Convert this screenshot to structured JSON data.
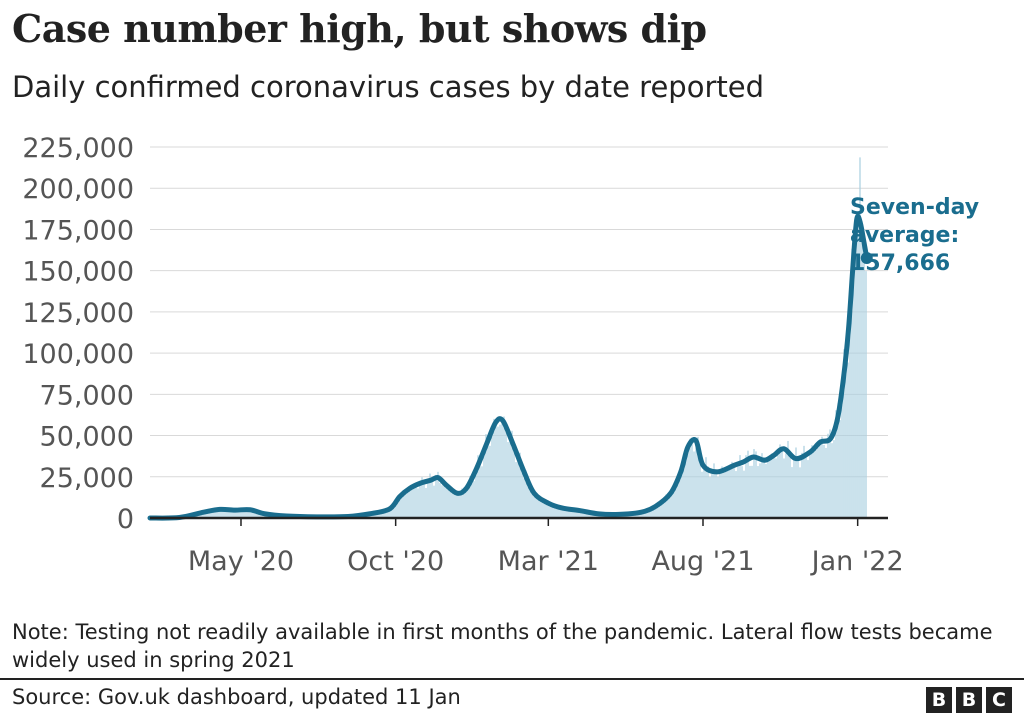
{
  "header": {
    "title": "Case number high, but shows dip",
    "subtitle": "Daily confirmed coronavirus cases by date reported"
  },
  "footer": {
    "note": "Note: Testing not readily available in first months of the pandemic. Lateral flow tests became widely used in spring 2021",
    "source": "Source: Gov.uk dashboard, updated 11 Jan",
    "logo": [
      "B",
      "B",
      "C"
    ]
  },
  "colors": {
    "line": "#1a6d8e",
    "bars": "#a8cfe0",
    "grid": "#d9d9d9",
    "axis": "#222222",
    "tick_text": "#555555"
  },
  "chart_data": {
    "type": "area",
    "title": "Case number high, but shows dip",
    "subtitle": "Daily confirmed coronavirus cases by date reported",
    "xlabel": "",
    "ylabel": "",
    "ylim": [
      0,
      225000
    ],
    "y_ticks": [
      0,
      25000,
      50000,
      75000,
      100000,
      125000,
      150000,
      175000,
      200000,
      225000
    ],
    "y_tick_labels": [
      "0",
      "25,000",
      "50,000",
      "75,000",
      "100,000",
      "125,000",
      "150,000",
      "175,000",
      "200,000",
      "225,000"
    ],
    "xlim": [
      "2020-02-01",
      "2022-01-31"
    ],
    "x_ticks": [
      "2020-05-01",
      "2020-10-01",
      "2021-03-01",
      "2021-08-01",
      "2022-01-01"
    ],
    "x_tick_labels": [
      "May '20",
      "Oct '20",
      "Mar '21",
      "Aug '21",
      "Jan '22"
    ],
    "grid": true,
    "series": [
      {
        "name": "Seven-day average",
        "type": "line",
        "x": [
          "2020-02-01",
          "2020-03-01",
          "2020-03-25",
          "2020-04-10",
          "2020-04-25",
          "2020-05-10",
          "2020-05-25",
          "2020-06-15",
          "2020-07-15",
          "2020-08-15",
          "2020-09-05",
          "2020-09-25",
          "2020-10-05",
          "2020-10-15",
          "2020-10-25",
          "2020-11-05",
          "2020-11-12",
          "2020-11-20",
          "2020-12-01",
          "2020-12-10",
          "2020-12-20",
          "2020-12-30",
          "2021-01-08",
          "2021-01-15",
          "2021-01-25",
          "2021-02-05",
          "2021-02-15",
          "2021-03-01",
          "2021-03-15",
          "2021-04-01",
          "2021-04-20",
          "2021-05-10",
          "2021-06-01",
          "2021-06-15",
          "2021-06-30",
          "2021-07-10",
          "2021-07-17",
          "2021-07-25",
          "2021-08-01",
          "2021-08-15",
          "2021-09-01",
          "2021-09-10",
          "2021-09-20",
          "2021-10-01",
          "2021-10-10",
          "2021-10-20",
          "2021-11-01",
          "2021-11-15",
          "2021-11-25",
          "2021-12-05",
          "2021-12-12",
          "2021-12-18",
          "2021-12-23",
          "2021-12-27",
          "2021-12-30",
          "2022-01-01",
          "2022-01-04",
          "2022-01-07",
          "2022-01-10"
        ],
        "y": [
          0,
          300,
          3500,
          5200,
          4800,
          5000,
          2500,
          1200,
          700,
          900,
          2500,
          5500,
          13000,
          18000,
          21000,
          23000,
          24500,
          20000,
          15000,
          18000,
          30000,
          45000,
          58000,
          59000,
          45000,
          28000,
          15000,
          9000,
          6000,
          4500,
          2500,
          2200,
          3500,
          7000,
          15000,
          28000,
          43000,
          47000,
          32000,
          28000,
          32000,
          34000,
          37000,
          35000,
          38000,
          42000,
          36000,
          40000,
          46000,
          48000,
          60000,
          85000,
          115000,
          150000,
          175000,
          183000,
          178000,
          168000,
          157666
        ]
      },
      {
        "name": "Daily cases",
        "type": "bar",
        "note": "daily reported cases shown as thin bars around the seven-day average",
        "peak_value": 218724,
        "peak_date": "2022-01-04"
      }
    ],
    "annotations": [
      {
        "lines": [
          "Seven-day",
          "average:",
          "157,666"
        ],
        "x": "2022-01-10",
        "y": 157666
      }
    ]
  }
}
